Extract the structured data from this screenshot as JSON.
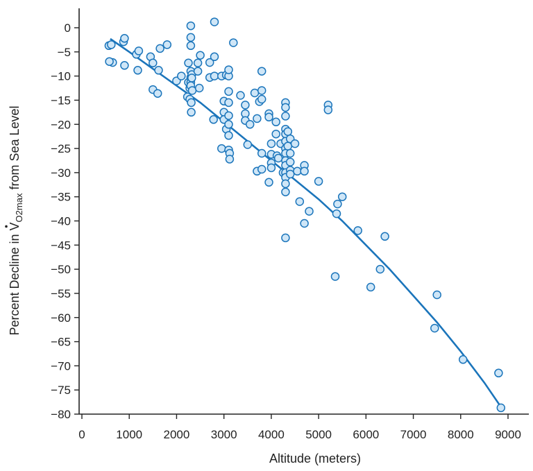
{
  "chart_data": {
    "type": "scatter",
    "xlabel": "Altitude (meters)",
    "ylabel": {
      "prefix": "Percent Decline in ",
      "symbol": "V",
      "subscript": "O2max",
      "suffix": " from Sea Level"
    },
    "xlim": [
      0,
      9000
    ],
    "ylim": [
      -80,
      0
    ],
    "xticks": [
      0,
      1000,
      2000,
      3000,
      4000,
      5000,
      6000,
      7000,
      8000,
      9000
    ],
    "yticks": [
      0,
      -5,
      -10,
      -15,
      -20,
      -25,
      -30,
      -35,
      -40,
      -45,
      -50,
      -55,
      -60,
      -65,
      -70,
      -75,
      -80
    ],
    "xtick_labels": [
      "0",
      "1000",
      "2000",
      "3000",
      "4000",
      "5000",
      "6000",
      "7000",
      "8000",
      "9000"
    ],
    "ytick_labels": [
      "0",
      "−5",
      "−10",
      "−15",
      "−20",
      "−25",
      "−30",
      "−35",
      "−40",
      "−45",
      "−50",
      "−55",
      "−60",
      "−65",
      "−70",
      "−75",
      "−80"
    ],
    "grid": false,
    "colors": {
      "marker_fill": "#cfe6f7",
      "marker_stroke": "#1b75bb",
      "line": "#1b75bb",
      "axis": "#222222"
    },
    "trend_line": {
      "x": [
        600,
        1000,
        1500,
        2000,
        2500,
        3000,
        3500,
        4000,
        4500,
        5000,
        5500,
        6000,
        6500,
        7000,
        7500,
        8000,
        8500,
        8850
      ],
      "y": [
        -2.3,
        -5.0,
        -8.5,
        -12.0,
        -15.5,
        -19.5,
        -23.5,
        -27.5,
        -31.5,
        -35.5,
        -40.0,
        -45.0,
        -50.0,
        -55.5,
        -61.0,
        -67.0,
        -73.5,
        -78.5
      ]
    },
    "points": [
      [
        570,
        -3.7
      ],
      [
        620,
        -3.5
      ],
      [
        650,
        -7.2
      ],
      [
        580,
        -7.0
      ],
      [
        880,
        -2.9
      ],
      [
        900,
        -2.2
      ],
      [
        900,
        -7.8
      ],
      [
        1150,
        -5.5
      ],
      [
        1200,
        -4.8
      ],
      [
        1180,
        -8.8
      ],
      [
        1450,
        -6.0
      ],
      [
        1500,
        -7.3
      ],
      [
        1500,
        -12.8
      ],
      [
        1600,
        -13.6
      ],
      [
        1650,
        -4.3
      ],
      [
        1620,
        -8.8
      ],
      [
        1800,
        -3.5
      ],
      [
        2000,
        -11.0
      ],
      [
        2100,
        -10.0
      ],
      [
        2230,
        -14.3
      ],
      [
        2250,
        -11.3
      ],
      [
        2250,
        -7.3
      ],
      [
        2280,
        -14.8
      ],
      [
        2280,
        -12.5
      ],
      [
        2300,
        0.4
      ],
      [
        2300,
        -2.0
      ],
      [
        2300,
        -3.7
      ],
      [
        2300,
        -9.0
      ],
      [
        2300,
        -10.3
      ],
      [
        2300,
        -11.3
      ],
      [
        2300,
        -12.0
      ],
      [
        2310,
        -15.5
      ],
      [
        2310,
        -17.5
      ],
      [
        2320,
        -9.7
      ],
      [
        2320,
        -10.4
      ],
      [
        2330,
        -13.0
      ],
      [
        2450,
        -7.3
      ],
      [
        2450,
        -9.0
      ],
      [
        2500,
        -5.7
      ],
      [
        2480,
        -12.5
      ],
      [
        2700,
        -7.2
      ],
      [
        2700,
        -10.3
      ],
      [
        2800,
        -6.0
      ],
      [
        2800,
        -10.0
      ],
      [
        2800,
        1.2
      ],
      [
        2780,
        -19.0
      ],
      [
        2950,
        -25.0
      ],
      [
        2950,
        -10.0
      ],
      [
        3000,
        -15.2
      ],
      [
        3000,
        -17.5
      ],
      [
        3000,
        -19.0
      ],
      [
        3050,
        -21.0
      ],
      [
        3050,
        -9.8
      ],
      [
        3100,
        -10.0
      ],
      [
        3100,
        -8.7
      ],
      [
        3100,
        -13.2
      ],
      [
        3100,
        -15.5
      ],
      [
        3100,
        -18.2
      ],
      [
        3100,
        -20.0
      ],
      [
        3100,
        -22.3
      ],
      [
        3100,
        -25.3
      ],
      [
        3120,
        -26.0
      ],
      [
        3120,
        -27.2
      ],
      [
        3200,
        -3.1
      ],
      [
        3350,
        -14.0
      ],
      [
        3450,
        -16.0
      ],
      [
        3450,
        -17.8
      ],
      [
        3450,
        -19.2
      ],
      [
        3500,
        -24.2
      ],
      [
        3550,
        -20.0
      ],
      [
        3650,
        -13.5
      ],
      [
        3700,
        -18.8
      ],
      [
        3700,
        -29.7
      ],
      [
        3750,
        -15.3
      ],
      [
        3800,
        -9.0
      ],
      [
        3800,
        -13.0
      ],
      [
        3800,
        -14.8
      ],
      [
        3800,
        -26.0
      ],
      [
        3800,
        -29.3
      ],
      [
        3950,
        -17.8
      ],
      [
        3950,
        -18.5
      ],
      [
        3950,
        -32.0
      ],
      [
        4000,
        -24.0
      ],
      [
        4000,
        -26.2
      ],
      [
        4000,
        -28.0
      ],
      [
        4000,
        -29.0
      ],
      [
        4100,
        -19.5
      ],
      [
        4100,
        -22.0
      ],
      [
        4120,
        -26.5
      ],
      [
        4150,
        -27.0
      ],
      [
        4200,
        -24.0
      ],
      [
        4250,
        -30.0
      ],
      [
        4300,
        -15.5
      ],
      [
        4300,
        -16.5
      ],
      [
        4300,
        -18.3
      ],
      [
        4300,
        -21.0
      ],
      [
        4300,
        -22.0
      ],
      [
        4300,
        -23.5
      ],
      [
        4300,
        -25.0
      ],
      [
        4300,
        -26.0
      ],
      [
        4300,
        -27.5
      ],
      [
        4300,
        -28.5
      ],
      [
        4300,
        -30.0
      ],
      [
        4300,
        -31.0
      ],
      [
        4300,
        -32.3
      ],
      [
        4300,
        -34.0
      ],
      [
        4300,
        -43.5
      ],
      [
        4350,
        -21.5
      ],
      [
        4350,
        -24.5
      ],
      [
        4400,
        -23.0
      ],
      [
        4400,
        -26.0
      ],
      [
        4400,
        -27.8
      ],
      [
        4400,
        -29.5
      ],
      [
        4400,
        -30.3
      ],
      [
        4500,
        -24.0
      ],
      [
        4550,
        -29.7
      ],
      [
        4600,
        -36.0
      ],
      [
        4700,
        -28.5
      ],
      [
        4700,
        -29.7
      ],
      [
        4700,
        -40.5
      ],
      [
        4800,
        -38.0
      ],
      [
        5000,
        -31.8
      ],
      [
        5200,
        -16.0
      ],
      [
        5200,
        -17.0
      ],
      [
        5350,
        -51.5
      ],
      [
        5380,
        -38.5
      ],
      [
        5400,
        -36.5
      ],
      [
        5500,
        -35.0
      ],
      [
        5830,
        -42.0
      ],
      [
        6100,
        -53.7
      ],
      [
        6300,
        -50.0
      ],
      [
        6400,
        -43.2
      ],
      [
        7450,
        -62.2
      ],
      [
        7500,
        -55.3
      ],
      [
        8050,
        -68.7
      ],
      [
        8800,
        -71.5
      ],
      [
        8850,
        -78.7
      ]
    ]
  }
}
